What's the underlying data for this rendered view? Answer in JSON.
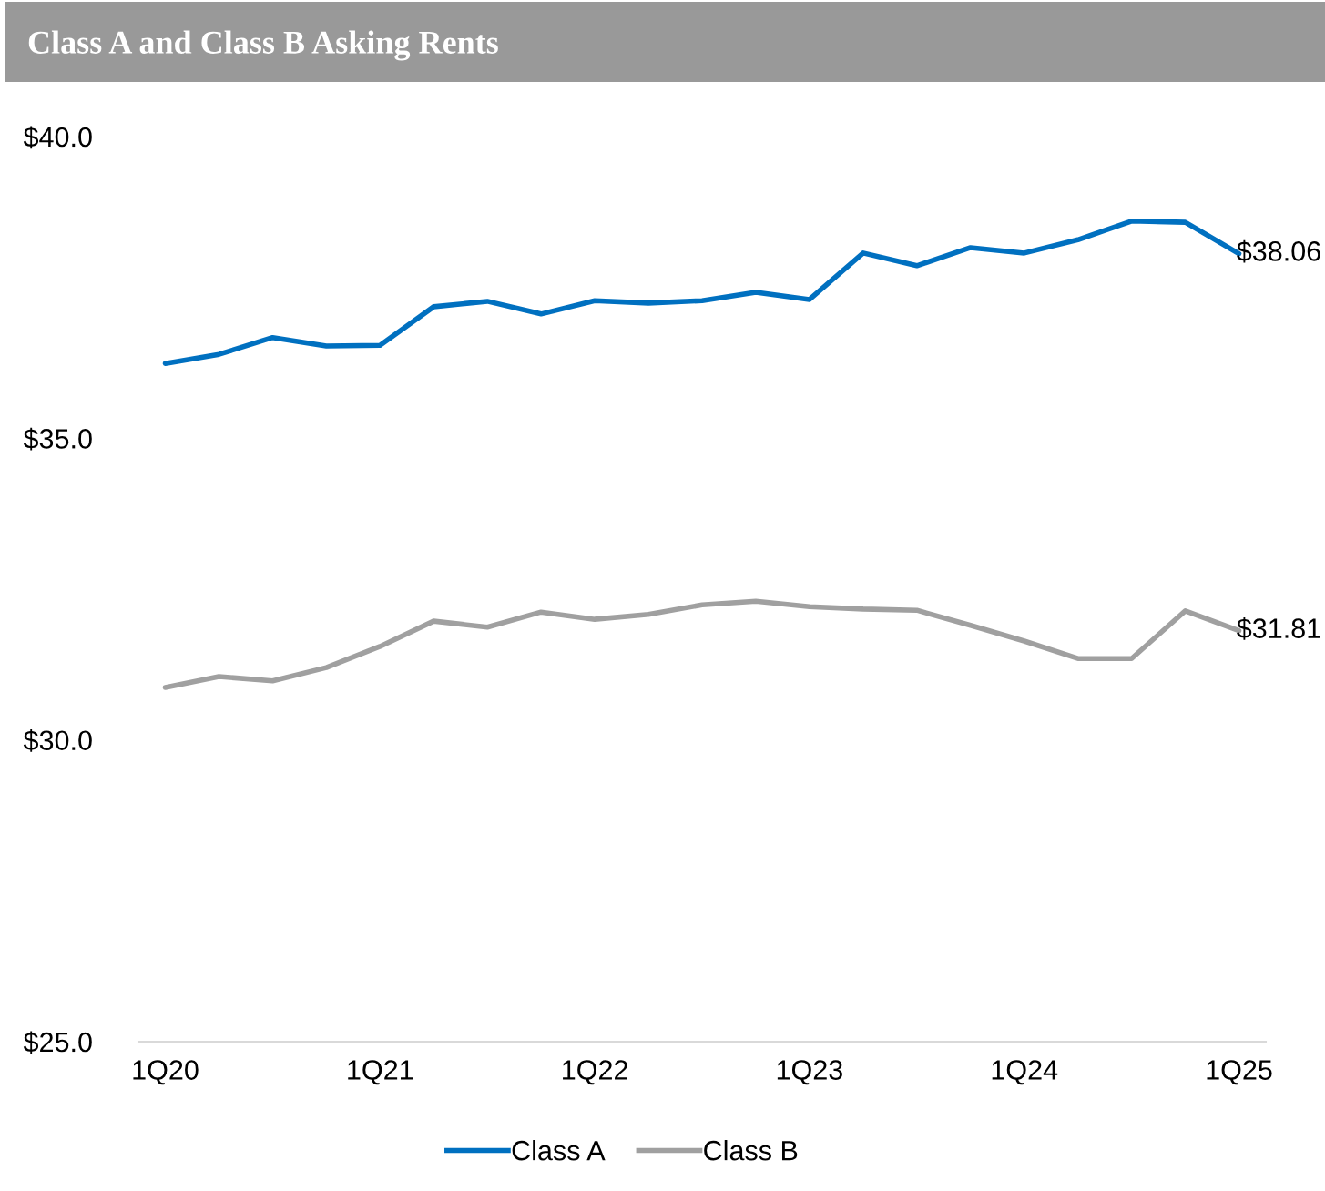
{
  "chart_data": {
    "type": "line",
    "title": "Class A and Class B Asking Rents",
    "categories": [
      "1Q20",
      null,
      null,
      null,
      "1Q21",
      null,
      null,
      null,
      "1Q22",
      null,
      null,
      null,
      "1Q23",
      null,
      null,
      null,
      "1Q24",
      null,
      null,
      null,
      "1Q25"
    ],
    "series": [
      {
        "name": "Class A",
        "color": "#0070c0",
        "values": [
          36.24,
          36.39,
          36.67,
          36.53,
          36.54,
          37.18,
          37.27,
          37.06,
          37.28,
          37.24,
          37.28,
          37.42,
          37.3,
          38.07,
          37.86,
          38.16,
          38.07,
          38.29,
          38.6,
          38.58,
          38.06
        ],
        "value_labels": [
          null,
          null,
          null,
          null,
          null,
          null,
          null,
          null,
          null,
          null,
          null,
          null,
          null,
          null,
          null,
          null,
          null,
          null,
          null,
          null,
          "$38.06"
        ]
      },
      {
        "name": "Class B",
        "color": "#a0a0a0",
        "values": [
          30.87,
          31.05,
          30.98,
          31.2,
          31.55,
          31.97,
          31.87,
          32.12,
          32.0,
          32.08,
          32.24,
          32.3,
          32.21,
          32.17,
          32.15,
          31.9,
          31.64,
          31.35,
          31.35,
          32.14,
          31.81
        ],
        "value_labels": [
          null,
          null,
          null,
          null,
          null,
          null,
          null,
          null,
          null,
          null,
          null,
          null,
          null,
          null,
          null,
          null,
          null,
          null,
          null,
          null,
          "$31.81"
        ]
      }
    ],
    "ylim": [
      25,
      40
    ],
    "yticks": [
      {
        "value": 25,
        "label": "$25.0"
      },
      {
        "value": 30,
        "label": "$30.0"
      },
      {
        "value": 35,
        "label": "$35.0"
      },
      {
        "value": 40,
        "label": "$40.0"
      }
    ],
    "grid": false,
    "legend": "bottom",
    "marker": "none",
    "line_style": "solid"
  }
}
